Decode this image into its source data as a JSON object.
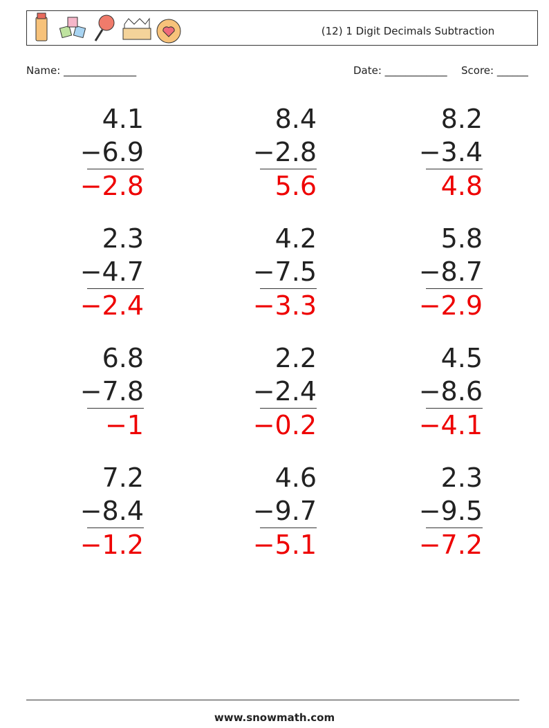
{
  "header": {
    "title": "(12) 1 Digit Decimals Subtraction"
  },
  "fields": {
    "name": "Name: ______________",
    "date": "Date: ____________",
    "score": "Score: ______"
  },
  "problems": [
    {
      "top": "4.1",
      "bottom": "−6.9",
      "answer": "−2.8"
    },
    {
      "top": "8.4",
      "bottom": "−2.8",
      "answer": "5.6"
    },
    {
      "top": "8.2",
      "bottom": "−3.4",
      "answer": "4.8"
    },
    {
      "top": "2.3",
      "bottom": "−4.7",
      "answer": "−2.4"
    },
    {
      "top": "4.2",
      "bottom": "−7.5",
      "answer": "−3.3"
    },
    {
      "top": "5.8",
      "bottom": "−8.7",
      "answer": "−2.9"
    },
    {
      "top": "6.8",
      "bottom": "−7.8",
      "answer": "−1"
    },
    {
      "top": "2.2",
      "bottom": "−2.4",
      "answer": "−0.2"
    },
    {
      "top": "4.5",
      "bottom": "−8.6",
      "answer": "−4.1"
    },
    {
      "top": "7.2",
      "bottom": "−8.4",
      "answer": "−1.2"
    },
    {
      "top": "4.6",
      "bottom": "−9.7",
      "answer": "−5.1"
    },
    {
      "top": "2.3",
      "bottom": "−9.5",
      "answer": "−7.2"
    }
  ],
  "footer": {
    "site": "www.snowmath.com"
  }
}
